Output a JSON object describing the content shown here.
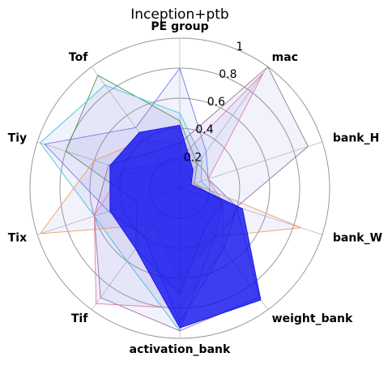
{
  "chart_data": {
    "type": "radar",
    "title": "Inception+ptb",
    "categories": [
      "PE group",
      "mac",
      "bank_H",
      "bank_W",
      "weight_bank",
      "activation_bank",
      "Tif",
      "Tix",
      "Tiy",
      "Tof"
    ],
    "ylim": [
      0,
      1
    ],
    "yticks": [
      0.2,
      0.4,
      0.6,
      0.8,
      1
    ],
    "series": [
      {
        "color": "#6f7fe0",
        "values": [
          0.8,
          0.3,
          0.2,
          0.4,
          0.5,
          0.9,
          0.4,
          0.5,
          0.95,
          0.5
        ]
      },
      {
        "color": "#4a9a4a",
        "values": [
          0.45,
          0.2,
          0.1,
          0.3,
          0.3,
          0.7,
          0.5,
          0.3,
          0.8,
          0.93
        ]
      },
      {
        "color": "#3ec8d8",
        "values": [
          0.5,
          0.25,
          0.15,
          0.3,
          0.4,
          0.95,
          0.6,
          0.6,
          0.98,
          0.85
        ]
      },
      {
        "color": "#f0a060",
        "values": [
          0.3,
          0.1,
          0.1,
          0.85,
          0.4,
          0.6,
          0.3,
          0.98,
          0.6,
          0.4
        ]
      },
      {
        "color": "#a070a0",
        "values": [
          0.3,
          1,
          0.9,
          0.4,
          0.9,
          0.95,
          0.9,
          0.6,
          0.5,
          0.3
        ]
      },
      {
        "color": "#e080a0",
        "values": [
          0.2,
          0.95,
          0.2,
          0.3,
          0.5,
          0.8,
          0.95,
          0.6,
          0.4,
          0.2
        ]
      },
      {
        "color": "#1010ee",
        "values": [
          0.42,
          0.15,
          0.08,
          0.44,
          0.92,
          0.93,
          0.5,
          0.49,
          0.49,
          0.46
        ]
      }
    ]
  }
}
